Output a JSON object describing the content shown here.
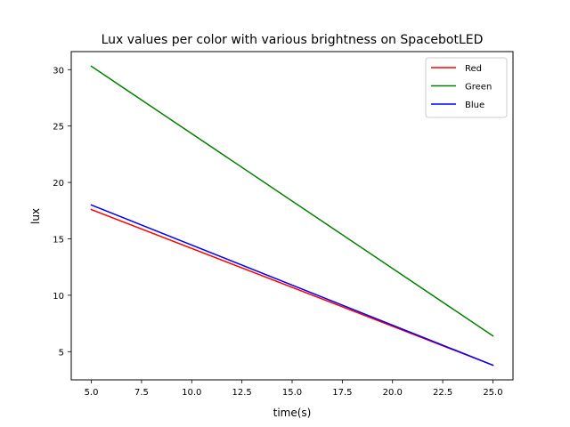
{
  "chart_data": {
    "type": "line",
    "title": "Lux values per color with various brightness on SpacebotLED",
    "xlabel": "time(s)",
    "ylabel": "lux",
    "xlim": [
      4.0,
      26.0
    ],
    "ylim": [
      2.5,
      31.6
    ],
    "xticks": [
      5.0,
      7.5,
      10.0,
      12.5,
      15.0,
      17.5,
      20.0,
      22.5,
      25.0
    ],
    "xtick_labels": [
      "5.0",
      "7.5",
      "10.0",
      "12.5",
      "15.0",
      "17.5",
      "20.0",
      "22.5",
      "25.0"
    ],
    "yticks": [
      5,
      10,
      15,
      20,
      25,
      30
    ],
    "ytick_labels": [
      "5",
      "10",
      "15",
      "20",
      "25",
      "30"
    ],
    "grid": false,
    "legend_position": "top-right",
    "series": [
      {
        "name": "Red",
        "color": "#ff0000",
        "x": [
          5,
          25
        ],
        "y": [
          17.6,
          3.8
        ]
      },
      {
        "name": "Green",
        "color": "#008000",
        "x": [
          5,
          25
        ],
        "y": [
          30.3,
          6.4
        ]
      },
      {
        "name": "Blue",
        "color": "#0000ff",
        "x": [
          5,
          25
        ],
        "y": [
          18.0,
          3.8
        ]
      }
    ]
  }
}
